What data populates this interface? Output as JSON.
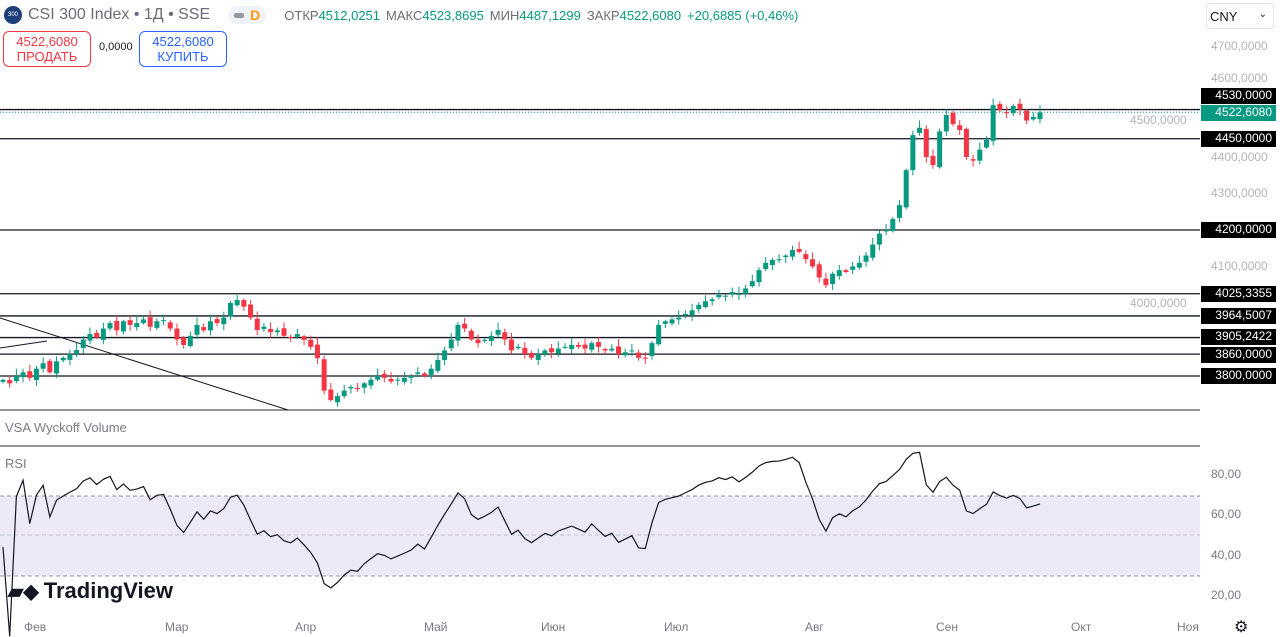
{
  "header": {
    "title": "CSI 300 Index • 1Д • SSE",
    "logo_text": "300",
    "interval_badge": "D",
    "ohlc": [
      {
        "k": "ОТКР",
        "v": "4512,0251"
      },
      {
        "k": "МАКС",
        "v": "4523,8695"
      },
      {
        "k": "МИН",
        "v": "4487,1299"
      },
      {
        "k": "ЗАКР",
        "v": "4522,6080"
      }
    ],
    "change": "+20,6885 (+0,46%)"
  },
  "trade": {
    "sell_price": "4522,6080",
    "sell_label": "ПРОДАТЬ",
    "spread": "0,0000",
    "buy_price": "4522,6080",
    "buy_label": "КУПИТЬ"
  },
  "currency": "CNY",
  "colors": {
    "up": "#089981",
    "down": "#f23645",
    "rsi_band": "#ede9f8",
    "rsi_line": "#131722"
  },
  "price_axis": [
    "4700,0000",
    "4600,0000",
    "4500,0000",
    "4400,0000",
    "4300,0000",
    "4200,0000",
    "4100,0000",
    "4000,0000"
  ],
  "levels": [
    {
      "v": 4530,
      "label": "4530,0000"
    },
    {
      "v": 4450,
      "label": "4450,0000"
    },
    {
      "v": 4200,
      "label": "4200,0000"
    },
    {
      "v": 4025.3355,
      "label": "4025,3355"
    },
    {
      "v": 3964.5007,
      "label": "3964,5007"
    },
    {
      "v": 3905.2422,
      "label": "3905,2422"
    },
    {
      "v": 3860,
      "label": "3860,0000"
    },
    {
      "v": 3800,
      "label": "3800,0000"
    }
  ],
  "last_price": {
    "v": 4522.608,
    "label": "4522,6080"
  },
  "indicators": {
    "vsa": "VSA Wyckoff Volume",
    "rsi": "RSI"
  },
  "rsi_axis": [
    "80,00",
    "60,00",
    "40,00",
    "20,00"
  ],
  "time_axis": [
    "Фев",
    "Мар",
    "Апр",
    "Май",
    "Июн",
    "Июл",
    "Авг",
    "Сен",
    "Окт",
    "Ноя"
  ],
  "brand": "TradingView",
  "chart_data": {
    "type": "candlestick",
    "closes": [
      3789,
      3780,
      3800,
      3810,
      3795,
      3820,
      3835,
      3810,
      3840,
      3850,
      3860,
      3871,
      3900,
      3915,
      3905,
      3930,
      3945,
      3925,
      3950,
      3940,
      3945,
      3955,
      3935,
      3950,
      3953,
      3930,
      3900,
      3885,
      3910,
      3940,
      3925,
      3950,
      3945,
      3960,
      4000,
      4008,
      3990,
      3960,
      3926,
      3935,
      3920,
      3925,
      3910,
      3905,
      3915,
      3899,
      3880,
      3849,
      3760,
      3734,
      3745,
      3760,
      3770,
      3765,
      3780,
      3790,
      3800,
      3795,
      3785,
      3790,
      3795,
      3800,
      3810,
      3800,
      3820,
      3844,
      3870,
      3900,
      3940,
      3930,
      3900,
      3890,
      3899,
      3910,
      3926,
      3900,
      3870,
      3880,
      3860,
      3850,
      3860,
      3870,
      3865,
      3875,
      3880,
      3885,
      3880,
      3875,
      3890,
      3880,
      3870,
      3875,
      3860,
      3865,
      3870,
      3850,
      3849,
      3890,
      3940,
      3950,
      3955,
      3960,
      3970,
      3980,
      3995,
      4005,
      4010,
      4022,
      4020,
      4030,
      4025,
      4040,
      4060,
      4090,
      4110,
      4118,
      4120,
      4130,
      4145,
      4140,
      4120,
      4100,
      4070,
      4049,
      4080,
      4090,
      4085,
      4100,
      4110,
      4130,
      4160,
      4190,
      4200,
      4230,
      4268,
      4364,
      4460,
      4480,
      4400,
      4378,
      4470,
      4515,
      4490,
      4474,
      4400,
      4390,
      4420,
      4447,
      4542,
      4529,
      4520,
      4540,
      4530,
      4500,
      4510,
      4522
    ],
    "ylim": [
      3700,
      4760
    ],
    "rsi_bands": [
      30,
      70
    ]
  }
}
